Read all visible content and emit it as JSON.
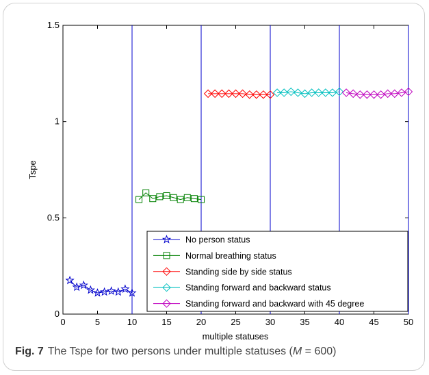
{
  "caption": {
    "label": "Fig. 7",
    "text": "The Tspe for two persons under multiple statuses (",
    "math_var": "M",
    "math_rest": " = 600)"
  },
  "chart_data": {
    "type": "line",
    "title": "",
    "xlabel": "multiple statuses",
    "ylabel": "Tspe",
    "xlim": [
      0,
      50
    ],
    "ylim": [
      0,
      1.5
    ],
    "xticks": [
      0,
      5,
      10,
      15,
      20,
      25,
      30,
      35,
      40,
      45,
      50
    ],
    "yticks": [
      0,
      0.5,
      1,
      1.5
    ],
    "ytick_labels": [
      "0",
      "0.5",
      "1",
      "1.5"
    ],
    "grid": false,
    "vertical_lines": [
      10,
      20,
      30,
      40,
      50
    ],
    "vertical_line_color": "#0000cc",
    "legend_position": "bottom-right",
    "series": [
      {
        "name": "No person status",
        "color": "#0000cc",
        "marker": "star",
        "x": [
          1,
          2,
          3,
          4,
          5,
          6,
          7,
          8,
          9,
          10
        ],
        "y": [
          0.175,
          0.14,
          0.15,
          0.125,
          0.11,
          0.115,
          0.12,
          0.115,
          0.13,
          0.11
        ]
      },
      {
        "name": "Normal breathing status",
        "color": "#008000",
        "marker": "square",
        "x": [
          11,
          12,
          13,
          14,
          15,
          16,
          17,
          18,
          19,
          20
        ],
        "y": [
          0.595,
          0.63,
          0.6,
          0.61,
          0.615,
          0.605,
          0.595,
          0.605,
          0.6,
          0.595
        ]
      },
      {
        "name": "Standing side by side status",
        "color": "#ff0000",
        "marker": "diamond",
        "x": [
          21,
          22,
          23,
          24,
          25,
          26,
          27,
          28,
          29,
          30
        ],
        "y": [
          1.145,
          1.145,
          1.145,
          1.145,
          1.145,
          1.145,
          1.14,
          1.14,
          1.14,
          1.14
        ]
      },
      {
        "name": "Standing forward and backward status",
        "color": "#00bfbf",
        "marker": "diamond",
        "x": [
          31,
          32,
          33,
          34,
          35,
          36,
          37,
          38,
          39,
          40
        ],
        "y": [
          1.15,
          1.15,
          1.155,
          1.15,
          1.145,
          1.15,
          1.15,
          1.15,
          1.15,
          1.155
        ]
      },
      {
        "name": "Standing forward and backward with 45 degree",
        "color": "#bf00bf",
        "marker": "diamond",
        "x": [
          41,
          42,
          43,
          44,
          45,
          46,
          47,
          48,
          49,
          50
        ],
        "y": [
          1.15,
          1.145,
          1.14,
          1.14,
          1.14,
          1.14,
          1.145,
          1.145,
          1.15,
          1.155
        ]
      }
    ]
  }
}
